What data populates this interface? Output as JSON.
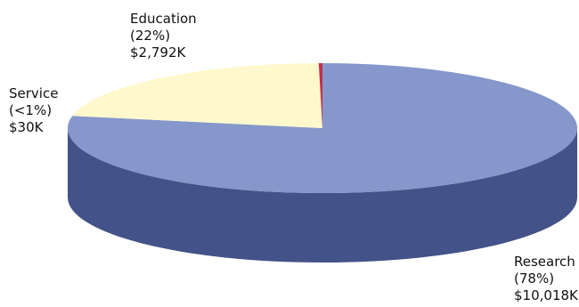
{
  "chart_data": {
    "type": "pie",
    "style": "3d",
    "title": "",
    "slices": [
      {
        "name": "Research",
        "value": 10018,
        "percent_label": "(78%)",
        "value_label": "$10,018K",
        "color": "#8597CB",
        "side_color": "#435288"
      },
      {
        "name": "Education",
        "value": 2792,
        "percent_label": "(22%)",
        "value_label": "$2,792K",
        "color": "#FFF8CC",
        "side_color": "#D8CF94"
      },
      {
        "name": "Service",
        "value": 30,
        "percent_label": "(<1%)",
        "value_label": "$30K",
        "color": "#C0304A",
        "side_color": "#8A1E30"
      }
    ]
  }
}
